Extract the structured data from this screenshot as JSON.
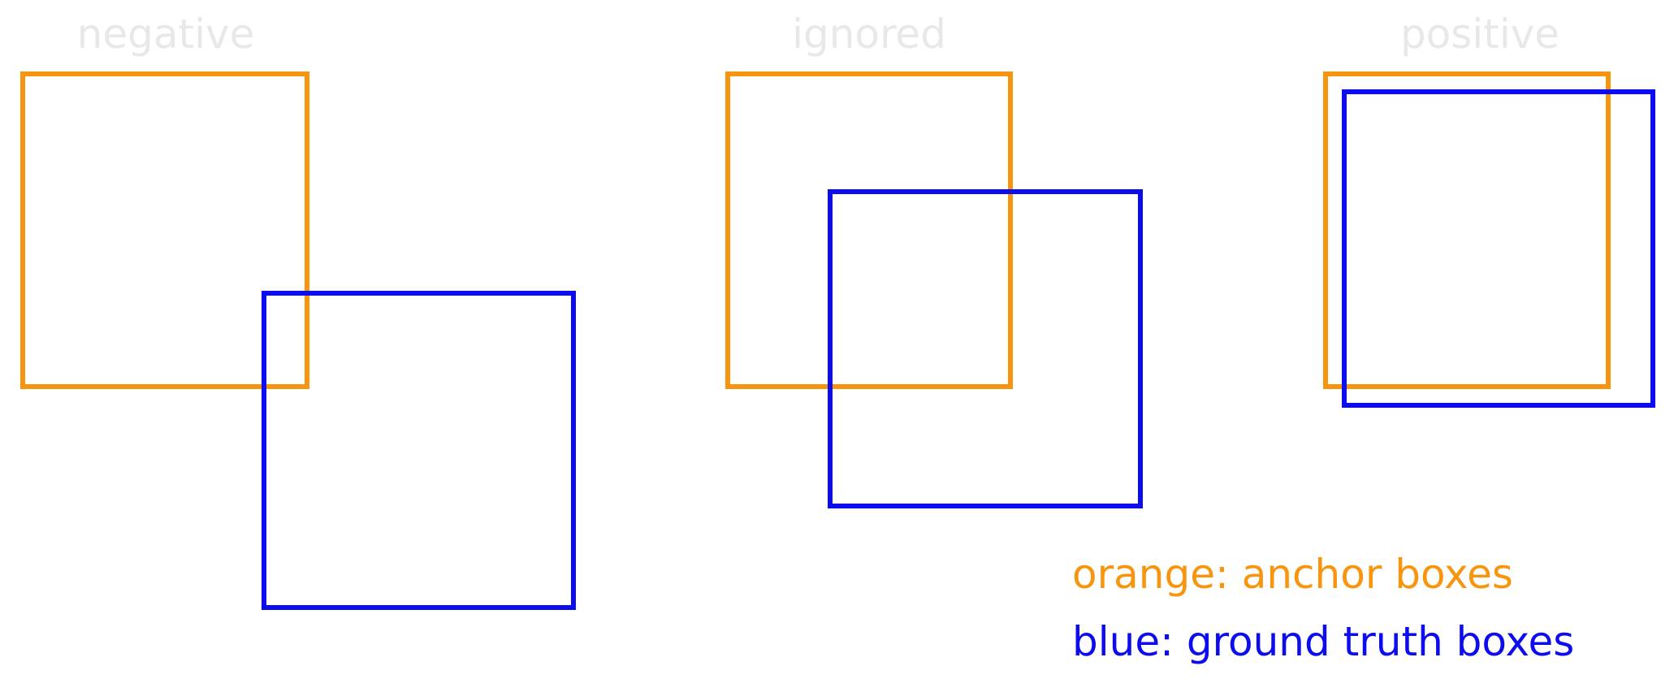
{
  "panels": [
    {
      "label": "negative"
    },
    {
      "label": "ignored"
    },
    {
      "label": "positive"
    }
  ],
  "legend": {
    "anchor": "orange: anchor boxes",
    "ground_truth": "blue: ground truth boxes"
  },
  "colors": {
    "anchor": "#f7950f",
    "ground_truth": "#0c0cee",
    "label": "#e8e8e8"
  }
}
